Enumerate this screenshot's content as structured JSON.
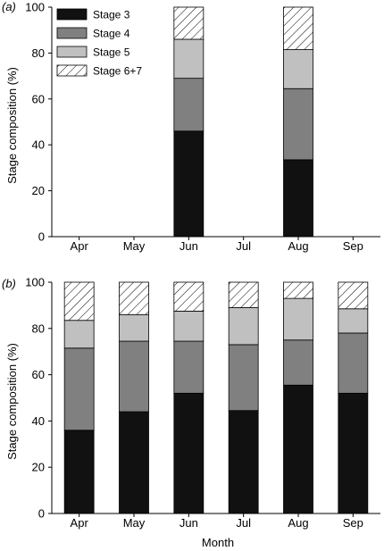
{
  "figure": {
    "panel_a_label": "(a)",
    "panel_b_label": "(b)",
    "xlabel": "Month"
  },
  "legend": {
    "entries": [
      "Stage 3",
      "Stage 4",
      "Stage 5",
      "Stage 6+7"
    ],
    "placement": "top-left, inside panel (a)"
  },
  "colors": {
    "Stage 3": "#111111",
    "Stage 4": "#808080",
    "Stage 5": "#c0c0c0",
    "Stage 6+7": "hatched"
  },
  "chart_data": [
    {
      "type": "bar",
      "stacked": true,
      "panel": "(a)",
      "title": "",
      "xlabel": "",
      "ylabel": "Stage composition (%)",
      "ylim": [
        0,
        100
      ],
      "yticks": [
        0,
        20,
        40,
        60,
        80,
        100
      ],
      "grid": false,
      "categories": [
        "Apr",
        "May",
        "Jun",
        "Jul",
        "Aug",
        "Sep"
      ],
      "series": [
        {
          "name": "Stage 3",
          "values": [
            null,
            null,
            46,
            null,
            33.5,
            null
          ]
        },
        {
          "name": "Stage 4",
          "values": [
            null,
            null,
            23,
            null,
            31,
            null
          ]
        },
        {
          "name": "Stage 5",
          "values": [
            null,
            null,
            17,
            null,
            17,
            null
          ]
        },
        {
          "name": "Stage 6+7",
          "values": [
            null,
            null,
            14,
            null,
            18.5,
            null
          ]
        }
      ]
    },
    {
      "type": "bar",
      "stacked": true,
      "panel": "(b)",
      "title": "",
      "xlabel": "Month",
      "ylabel": "Stage composition (%)",
      "ylim": [
        0,
        100
      ],
      "yticks": [
        0,
        20,
        40,
        60,
        80,
        100
      ],
      "grid": false,
      "categories": [
        "Apr",
        "May",
        "Jun",
        "Jul",
        "Aug",
        "Sep"
      ],
      "series": [
        {
          "name": "Stage 3",
          "values": [
            36,
            44,
            52,
            44.5,
            55.5,
            52
          ]
        },
        {
          "name": "Stage 4",
          "values": [
            35.5,
            30.5,
            22.5,
            28.5,
            19.5,
            26
          ]
        },
        {
          "name": "Stage 5",
          "values": [
            12,
            11.5,
            13,
            16,
            18,
            10.5
          ]
        },
        {
          "name": "Stage 6+7",
          "values": [
            16.5,
            14,
            12.5,
            11,
            7,
            11.5
          ]
        }
      ]
    }
  ]
}
